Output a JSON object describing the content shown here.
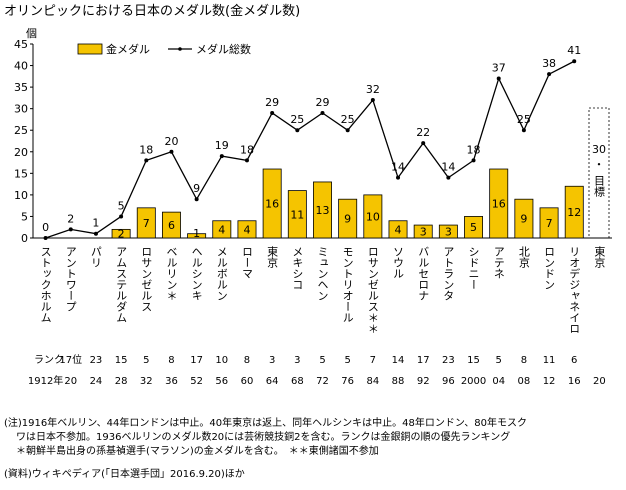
{
  "chart_data": {
    "type": "bar",
    "title": "オリンピックにおける日本のメダル数(金メダル数)",
    "ylabel": "個",
    "ylim": [
      0,
      45
    ],
    "yticks": [
      0,
      5,
      10,
      15,
      20,
      25,
      30,
      35,
      40,
      45
    ],
    "legend_position": "top-left",
    "colors": {
      "bar": "#f5c400",
      "bar_edge": "#000000",
      "line": "#000000"
    },
    "categories": [
      "ストックホルム",
      "アントワープ",
      "パリ",
      "アムステルダム",
      "ロサンゼルス",
      "ベルリン＊",
      "ヘルシンキ",
      "メルボルン",
      "ローマ",
      "東京",
      "メキシコ",
      "ミュンヘン",
      "モントリオール",
      "ロサンゼルス＊＊",
      "ソウル",
      "バルセロナ",
      "アトランタ",
      "シドニー",
      "アテネ",
      "北京",
      "ロンドン",
      "リオデジャネイロ",
      "東京"
    ],
    "years": [
      "1912年",
      "20",
      "24",
      "28",
      "32",
      "36",
      "52",
      "56",
      "60",
      "64",
      "68",
      "72",
      "76",
      "84",
      "88",
      "92",
      "96",
      "2000",
      "04",
      "08",
      "12",
      "16",
      "20"
    ],
    "ranks": [
      "",
      "17位",
      "23",
      "15",
      "5",
      "8",
      "17",
      "10",
      "8",
      "3",
      "3",
      "5",
      "5",
      "7",
      "14",
      "17",
      "23",
      "15",
      "5",
      "8",
      "11",
      "6",
      ""
    ],
    "rank_label": "ランク",
    "series": [
      {
        "name": "金メダル",
        "type": "bar",
        "values": [
          0,
          0,
          0,
          2,
          7,
          6,
          1,
          4,
          4,
          16,
          11,
          13,
          9,
          10,
          4,
          3,
          3,
          5,
          16,
          9,
          7,
          12,
          null
        ]
      },
      {
        "name": "メダル総数",
        "type": "line",
        "values": [
          0,
          2,
          1,
          5,
          18,
          20,
          9,
          19,
          18,
          29,
          25,
          29,
          25,
          32,
          14,
          22,
          14,
          18,
          37,
          25,
          38,
          41,
          null
        ]
      }
    ],
    "target": {
      "value": 30,
      "label_value": "30",
      "label_dot": "・",
      "label_text": "目標"
    }
  },
  "notes": {
    "line1": "(注)1916年ベルリン、44年ロンドンは中止。40年東京は返上、同年ヘルシンキは中止。48年ロンドン、80年モスク",
    "line2": "ワは日本不参加。1936ベルリンのメダル数20には芸術競技銅2を含む。ランクは金銀銅の順の優先ランキング",
    "line3": "＊朝鮮半島出身の孫基禎選手(マラソン)の金メダルを含む。　＊＊東側諸国不参加",
    "source": "(資料)ウィキペディア(「日本選手団」2016.9.20)ほか"
  }
}
